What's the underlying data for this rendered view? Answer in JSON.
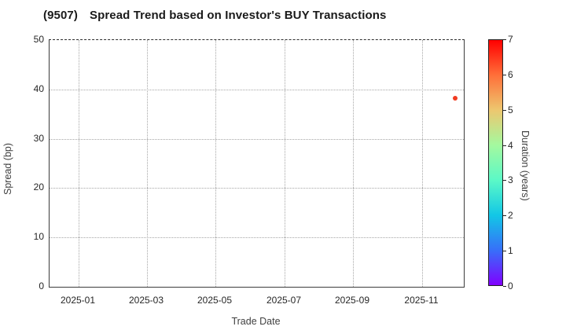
{
  "figure": {
    "background": "#ffffff",
    "title_code": "(9507)",
    "title_text": "Spread Trend based on Investor's BUY Transactions"
  },
  "chart_data": {
    "type": "scatter",
    "title": "(9507)  Spread Trend based on Investor's BUY Transactions",
    "xlabel": "Trade Date",
    "ylabel": "Spread (bp)",
    "ylim": [
      0,
      50
    ],
    "yticks": [
      "0",
      "10",
      "20",
      "30",
      "40",
      "50"
    ],
    "xticks": [
      "2025-01",
      "2025-03",
      "2025-05",
      "2025-07",
      "2025-09",
      "2025-11"
    ],
    "grid": true,
    "gridline_style": "dotted",
    "points": [
      {
        "trade_date": "2025-11-28",
        "spread_bp": 38.2,
        "duration_years": 6.5,
        "color": "#f13c22",
        "x_frac": 0.979,
        "y_frac": 0.236
      }
    ],
    "colorbar": {
      "label": "Duration (years)",
      "min": 0,
      "max": 7,
      "ticks": [
        "0",
        "1",
        "2",
        "3",
        "4",
        "5",
        "6",
        "7"
      ],
      "colormap": "rainbow",
      "gradient_stops": [
        "#8000ff",
        "#376ff9",
        "#12c7e6",
        "#5bf9c7",
        "#a4f99f",
        "#edc76f",
        "#ff6f39",
        "#ff0000"
      ]
    }
  }
}
